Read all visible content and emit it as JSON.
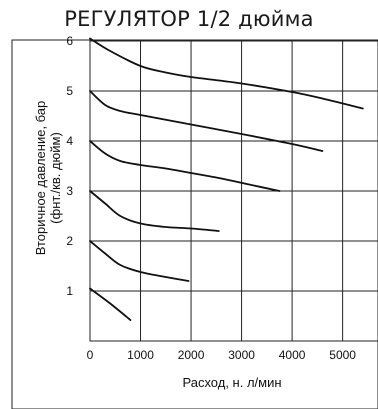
{
  "chart_data": {
    "type": "line",
    "title": "РЕГУЛЯТОР 1/2 дюйма",
    "xlabel": "Расход, н. л/мин",
    "ylabel": [
      "Вторичное давление, бар",
      "(фнт./кв. дюйм)"
    ],
    "xlim": [
      0,
      5700
    ],
    "ylim": [
      0,
      6.1
    ],
    "xticks": [
      0,
      1000,
      2000,
      3000,
      4000,
      5000
    ],
    "yticks": [
      1,
      2,
      3,
      4,
      5,
      6
    ],
    "grid": true,
    "series": [
      {
        "x": [
          0,
          400,
          800
        ],
        "y": [
          1.05,
          0.75,
          0.42
        ]
      },
      {
        "x": [
          0,
          300,
          600,
          1000,
          1500,
          1950
        ],
        "y": [
          2.0,
          1.75,
          1.52,
          1.38,
          1.28,
          1.2
        ]
      },
      {
        "x": [
          0,
          300,
          600,
          1000,
          1500,
          2000,
          2550
        ],
        "y": [
          3.0,
          2.75,
          2.5,
          2.35,
          2.28,
          2.25,
          2.2
        ]
      },
      {
        "x": [
          0,
          300,
          600,
          1000,
          1500,
          2000,
          2600,
          3150,
          3750
        ],
        "y": [
          4.0,
          3.75,
          3.6,
          3.52,
          3.45,
          3.36,
          3.25,
          3.13,
          3.0
        ]
      },
      {
        "x": [
          0,
          300,
          600,
          1000,
          2000,
          3000,
          4000,
          4600
        ],
        "y": [
          5.0,
          4.72,
          4.6,
          4.52,
          4.33,
          4.14,
          3.94,
          3.8
        ]
      },
      {
        "x": [
          0,
          400,
          1000,
          1500,
          2000,
          3000,
          4000,
          4600,
          5400
        ],
        "y": [
          6.05,
          5.8,
          5.5,
          5.37,
          5.28,
          5.15,
          4.98,
          4.85,
          4.65
        ]
      }
    ]
  }
}
